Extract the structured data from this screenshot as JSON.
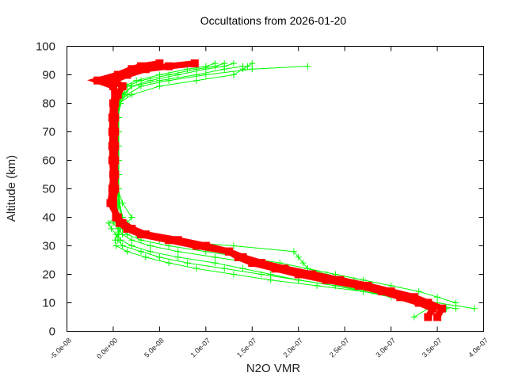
{
  "chart_data": {
    "type": "scatter",
    "title": "Occultations from 2026-01-20",
    "xlabel": "N2O VMR",
    "ylabel": "Altitude (km)",
    "xlim": [
      -5e-08,
      4e-07
    ],
    "ylim": [
      0,
      100
    ],
    "x_ticks": [
      -5e-08,
      0,
      5e-08,
      1e-07,
      1.5e-07,
      2e-07,
      2.5e-07,
      3e-07,
      3.5e-07,
      4e-07
    ],
    "x_tick_labels": [
      "-5.0e-08",
      "0.0e+00",
      "5.0e-08",
      "1.0e-07",
      "1.5e-07",
      "2.0e-07",
      "2.5e-07",
      "3.0e-07",
      "3.5e-07",
      "4.0e-07"
    ],
    "y_ticks": [
      0,
      10,
      20,
      30,
      40,
      50,
      60,
      70,
      80,
      90,
      100
    ],
    "y_tick_labels": [
      "0",
      "10",
      "20",
      "30",
      "40",
      "50",
      "60",
      "70",
      "80",
      "90",
      "100"
    ],
    "grid": false,
    "colors": {
      "retrieved": "#ff0000",
      "reference": "#00ff00",
      "frame": "#000000"
    },
    "altitudes": [
      5,
      8,
      10,
      12,
      14,
      16,
      18,
      20,
      22,
      24,
      26,
      28,
      30,
      32,
      34,
      36,
      38,
      40,
      45,
      50,
      55,
      60,
      65,
      70,
      75,
      80,
      83,
      86,
      88,
      90,
      92,
      93,
      94
    ],
    "series_green": [
      [
        null,
        3.9e-07,
        3.5e-07,
        3.1e-07,
        2.7e-07,
        2.2e-07,
        1.7e-07,
        1.3e-07,
        9e-08,
        6e-08,
        3.5e-08,
        1.5e-08,
        3e-09,
        2e-09,
        5e-09,
        6e-09,
        8e-09,
        1e-08,
        7e-09,
        6e-09,
        6e-09,
        6e-09,
        6e-09,
        6e-09,
        6e-09,
        6e-09,
        1.5e-08,
        3e-08,
        6e-08,
        1e-07,
        1.5e-07,
        2.1e-07,
        null
      ],
      [
        3.25e-07,
        3.4e-07,
        3.3e-07,
        3.1e-07,
        2.9e-07,
        2.7e-07,
        2.5e-07,
        2.3e-07,
        2.1e-07,
        2.05e-07,
        2e-07,
        1.95e-07,
        1.3e-07,
        5e-08,
        2.5e-08,
        1.5e-08,
        1e-08,
        1e-08,
        6e-09,
        6e-09,
        6e-09,
        6e-09,
        6e-09,
        6e-09,
        6e-09,
        6e-09,
        2e-08,
        5e-08,
        9e-08,
        1.3e-07,
        1.4e-07,
        1.45e-07,
        1.5e-07
      ],
      [
        null,
        3.7e-07,
        3.3e-07,
        3e-07,
        2.7e-07,
        2.4e-07,
        2e-07,
        1.6e-07,
        1.2e-07,
        8e-08,
        5e-08,
        3e-08,
        1e-08,
        5e-09,
        6e-09,
        8e-09,
        1.5e-08,
        2e-08,
        1e-08,
        5e-09,
        5e-09,
        5e-09,
        5e-09,
        5e-09,
        5e-09,
        6e-09,
        1e-08,
        2e-08,
        5e-08,
        9e-08,
        1.2e-07,
        1.4e-07,
        null
      ],
      [
        null,
        3.6e-07,
        3.4e-07,
        3.2e-07,
        3e-07,
        2.8e-07,
        2.6e-07,
        2.3e-07,
        1.9e-07,
        1.5e-07,
        1.1e-07,
        7e-08,
        4e-08,
        2e-08,
        1e-08,
        5e-09,
        0,
        5e-09,
        5e-09,
        5e-09,
        5e-09,
        5e-09,
        5e-09,
        5e-09,
        5e-09,
        8e-09,
        1.2e-08,
        2e-08,
        4e-08,
        7e-08,
        1e-07,
        1.2e-07,
        1.3e-07
      ],
      [
        null,
        null,
        3.3e-07,
        3.1e-07,
        2.8e-07,
        2.4e-07,
        2e-07,
        1.7e-07,
        1.4e-07,
        1.1e-07,
        7e-08,
        4e-08,
        2e-08,
        8e-09,
        3e-09,
        -2e-09,
        -5e-09,
        3e-09,
        7e-09,
        5e-09,
        5e-09,
        5e-09,
        5e-09,
        5e-09,
        5e-09,
        7e-09,
        1e-08,
        1.5e-08,
        3e-08,
        6e-08,
        9e-08,
        1.1e-07,
        1.2e-07
      ],
      [
        null,
        null,
        3.7e-07,
        3.5e-07,
        3.3e-07,
        3e-07,
        2.7e-07,
        2.4e-07,
        2.1e-07,
        1.8e-07,
        1.4e-07,
        1e-07,
        6e-08,
        3e-08,
        1.5e-08,
        1e-08,
        5e-09,
        8e-09,
        6e-09,
        5e-09,
        5e-09,
        5e-09,
        5e-09,
        5e-09,
        5e-09,
        6e-09,
        8e-09,
        1.2e-08,
        2.5e-08,
        5e-08,
        8e-08,
        1e-07,
        1.1e-07
      ]
    ],
    "series_red": [
      [
        3.4e-07,
        3.45e-07,
        3.3e-07,
        3.1e-07,
        2.9e-07,
        2.65e-07,
        2.3e-07,
        2e-07,
        1.75e-07,
        1.5e-07,
        1.35e-07,
        1.25e-07,
        1e-07,
        7e-08,
        3.5e-08,
        2e-08,
        1e-08,
        5e-09,
        -3e-09,
        -1e-09,
        0,
        -1e-09,
        -1e-09,
        -1e-09,
        -1e-09,
        0,
        2e-09,
        0,
        -1.7e-08,
        5e-09,
        2e-08,
        3e-08,
        5e-08
      ],
      [
        3.5e-07,
        3.55e-07,
        3.4e-07,
        3.25e-07,
        3e-07,
        2.75e-07,
        2.45e-07,
        2.15e-07,
        1.85e-07,
        1.6e-07,
        1.4e-07,
        1.25e-07,
        9e-08,
        6e-08,
        3e-08,
        1.5e-08,
        7e-09,
        3e-09,
        0,
        2e-09,
        2e-09,
        2e-09,
        2e-09,
        2e-09,
        2e-09,
        2e-09,
        5e-09,
        1e-08,
        0,
        1.5e-08,
        3.5e-08,
        6e-08,
        8.8e-08
      ]
    ]
  }
}
